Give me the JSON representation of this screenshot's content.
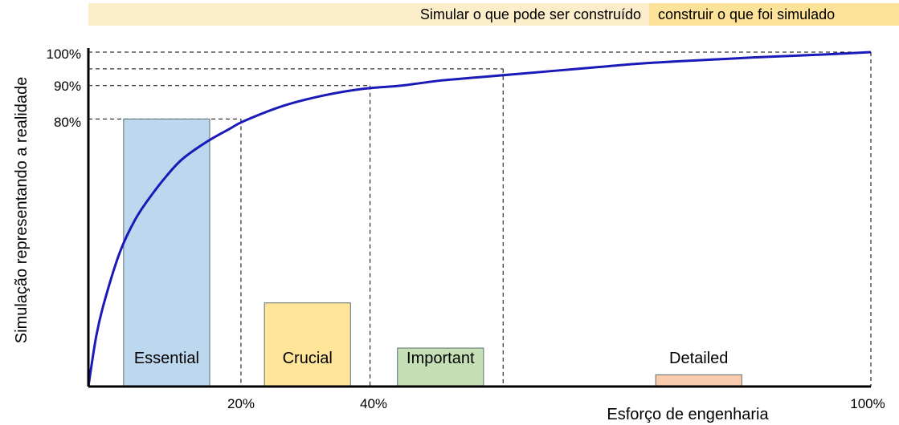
{
  "banner": {
    "left_text": "Simular o que pode ser construído",
    "right_text": "construir o que foi simulado",
    "left_color": "#fdeecb",
    "right_color": "#fde29a"
  },
  "chart_data": {
    "type": "line",
    "xlabel": "Esforço de engenharia",
    "ylabel": "Simulação representando a realidade",
    "x_ticks": [
      "20%",
      "40%",
      "100%"
    ],
    "y_ticks": [
      "80%",
      "90%",
      "100%"
    ],
    "grid": false,
    "curve_color": "#1a1ab8",
    "curve": {
      "x": [
        0,
        1,
        2,
        4,
        6,
        8,
        10,
        12,
        15,
        18,
        20,
        25,
        30,
        35,
        40,
        45,
        50,
        55,
        60,
        65,
        70,
        75,
        80,
        85,
        90,
        95,
        100
      ],
      "y": [
        0,
        15,
        25,
        40,
        50,
        57,
        63,
        68,
        73,
        77,
        79.5,
        84,
        87,
        89,
        90,
        91.5,
        92.5,
        93.5,
        94.5,
        95.5,
        96.5,
        97.2,
        97.8,
        98.4,
        98.9,
        99.4,
        100
      ]
    },
    "reference_lines": [
      {
        "x": 19.5,
        "y": 80
      },
      {
        "x": 36,
        "y": 90
      },
      {
        "x": 53,
        "y": 95
      },
      {
        "x": 100,
        "y": 100
      }
    ],
    "bars": [
      {
        "label": "Essential",
        "x_start": 4.5,
        "x_end": 15.5,
        "value": 80,
        "color": "#bdd7ee",
        "label_y": 7
      },
      {
        "label": "Crucial",
        "x_start": 22.5,
        "x_end": 33.5,
        "value": 25,
        "color": "#fee599",
        "label_y": 7
      },
      {
        "label": "Important",
        "x_start": 39.5,
        "x_end": 50.5,
        "value": 11.5,
        "color": "#c5e0b4",
        "label_y": 7
      },
      {
        "label": "Detailed",
        "x_start": 72.5,
        "x_end": 83.5,
        "value": 3.5,
        "color": "#f8cbad",
        "label_y": 7
      }
    ]
  }
}
